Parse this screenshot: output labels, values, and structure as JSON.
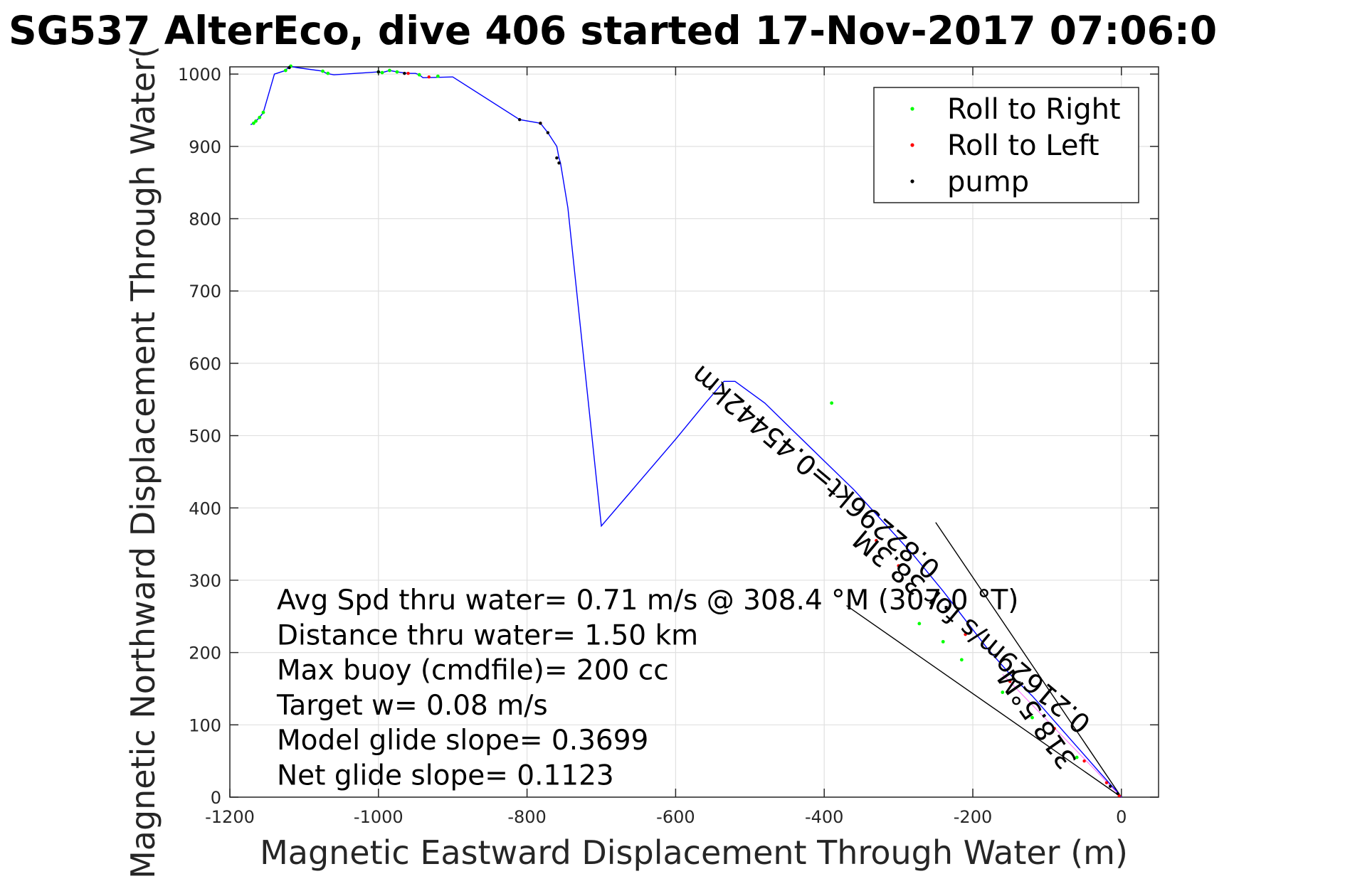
{
  "chart_data": {
    "type": "line",
    "title": "SG537 AlterEco, dive 406 started 17-Nov-2017 07:06:0",
    "xlabel": "Magnetic Eastward Displacement Through Water (m)",
    "ylabel": "Magnetic Northward Displacement Through Water(",
    "xlim": [
      -1200,
      50
    ],
    "ylim": [
      0,
      1010
    ],
    "xticks": [
      -1200,
      -1000,
      -800,
      -600,
      -400,
      -200,
      0
    ],
    "yticks": [
      0,
      100,
      200,
      300,
      400,
      500,
      600,
      700,
      800,
      900,
      1000
    ],
    "grid": true,
    "legend_position": "top-right",
    "colors": {
      "track": "#0000ff",
      "roll_right": "#00ff00",
      "roll_left": "#ff0000",
      "pump": "#000000",
      "guide": "#000000",
      "net_line": "#ff00ff"
    },
    "legend": [
      {
        "label": "Roll to Right",
        "color": "#00ff00"
      },
      {
        "label": "Roll to Left",
        "color": "#ff0000"
      },
      {
        "label": "pump",
        "color": "#000000"
      }
    ],
    "series": [
      {
        "name": "track",
        "x": [
          0,
          -6,
          -15,
          -30,
          -60,
          -90,
          -120,
          -150,
          -180,
          -210,
          -240,
          -280,
          -320,
          -360,
          -400,
          -440,
          -480,
          -520,
          -535,
          -560,
          -600,
          -650,
          -700,
          -745,
          -755,
          -757,
          -760,
          -772,
          -782,
          -810,
          -900,
          -940,
          -945,
          -950,
          -960,
          -975,
          -985,
          -995,
          -1000,
          -1060,
          -1070,
          -1075,
          -1110,
          -1120,
          -1125,
          -1140,
          -1155,
          -1160,
          -1165,
          -1168,
          -1172
        ],
        "y": [
          0,
          8,
          18,
          35,
          70,
          105,
          140,
          170,
          205,
          245,
          285,
          335,
          380,
          425,
          465,
          505,
          545,
          575,
          575,
          545,
          495,
          435,
          375,
          815,
          877,
          884,
          900,
          919,
          932,
          937,
          996,
          995,
          999,
          1001,
          1001,
          1003,
          1005,
          1002,
          1003,
          999,
          1001,
          1004,
          1009,
          1011,
          1005,
          1000,
          947,
          940,
          935,
          932,
          930
        ]
      }
    ],
    "markers": {
      "roll_right": {
        "x": [
          -1168,
          -1165,
          -1160,
          -1155,
          -1125,
          -1118,
          -1075,
          -1068,
          -1000,
          -995,
          -985,
          -975,
          -945,
          -920,
          -390,
          -272,
          -240,
          -215,
          -160,
          -120,
          -60
        ],
        "y": [
          932,
          935,
          940,
          947,
          1005,
          1011,
          1004,
          1001,
          1003,
          1002,
          1005,
          1003,
          999,
          997,
          545,
          240,
          215,
          190,
          145,
          110,
          55
        ]
      },
      "roll_left": {
        "x": [
          -960,
          -932,
          -782,
          -330,
          -300,
          -210,
          -150,
          -90,
          -50,
          -20,
          -3
        ],
        "y": [
          1001,
          996,
          932,
          355,
          320,
          225,
          160,
          95,
          50,
          20,
          2
        ]
      },
      "pump": {
        "x": [
          -1120,
          -1000,
          -965,
          -810,
          -782,
          -772,
          -760,
          -757,
          -15,
          -5
        ],
        "y": [
          1009,
          1003,
          1001,
          937,
          932,
          919,
          884,
          877,
          15,
          5
        ]
      }
    },
    "guide_lines": [
      {
        "x": [
          0,
          -250
        ],
        "y": [
          0,
          380
        ]
      },
      {
        "x": [
          0,
          -370
        ],
        "y": [
          0,
          265
        ]
      }
    ],
    "stats": [
      "Avg Spd thru water=  0.71 m/s @ 308.4 °M (307.0 °T)",
      "Distance thru water=  1.50 km",
      "Max buoy (cmdfile)= 200 cc",
      "Target w= 0.08 m/s",
      "Model glide slope= 0.3699",
      "Net glide slope= 0.1123"
    ],
    "rotated_annotations": [
      "0.82296kt=0.45442km",
      "0.21629m/s for 38.3M",
      "318.5°M"
    ]
  }
}
